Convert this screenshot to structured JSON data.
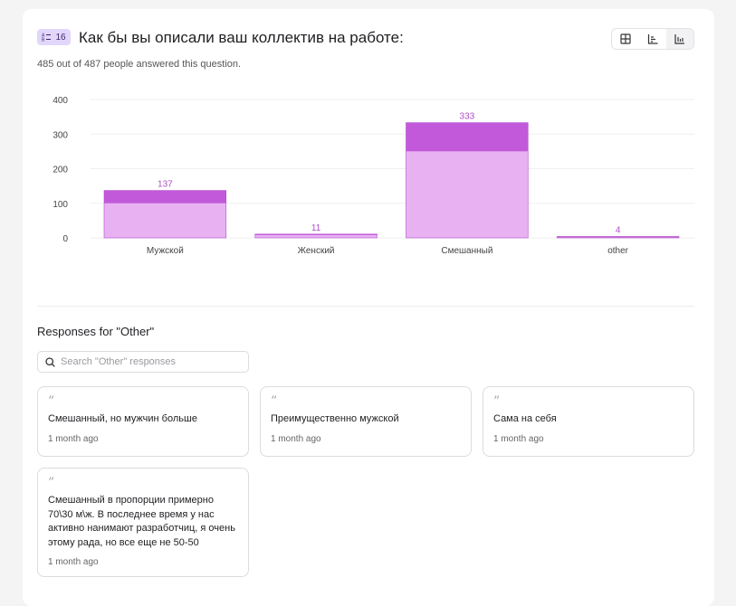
{
  "question": {
    "number": "16",
    "title": "Как бы вы описали ваш коллектив на работе:",
    "subtitle": "485 out of 487 people answered this question."
  },
  "view_toggle": [
    {
      "icon": "table-icon"
    },
    {
      "icon": "horizontal-bar-icon"
    },
    {
      "icon": "vertical-bar-icon",
      "active": true
    }
  ],
  "chart_data": {
    "type": "bar",
    "stacked": true,
    "categories": [
      "Мужской",
      "Женский",
      "Смешанный",
      "other"
    ],
    "totals": [
      137,
      11,
      333,
      4
    ],
    "series": [
      {
        "name": "lower",
        "color": "#e8b2f2",
        "values": [
          100,
          8,
          250,
          3
        ]
      },
      {
        "name": "upper",
        "color": "#c259da",
        "values": [
          37,
          3,
          83,
          1
        ]
      }
    ],
    "yticks": [
      "0",
      "100",
      "200",
      "300",
      "400"
    ],
    "ylim": [
      0,
      400
    ],
    "grid": true,
    "label_color": "#b04cc8"
  },
  "other": {
    "title": "Responses for \"Other\"",
    "search_placeholder": "Search \"Other\" responses",
    "responses": [
      {
        "text": "Смешанный, но мужчин больше",
        "time": "1 month ago"
      },
      {
        "text": "Преимущественно мужской",
        "time": "1 month ago"
      },
      {
        "text": "Сама на себя",
        "time": "1 month ago"
      },
      {
        "text": "Смешанный в пропорции примерно 70\\30 м\\ж. В последнее время у нас активно нанимают разработчиц, я очень этому рада, но все еще не 50-50",
        "time": "1 month ago"
      }
    ]
  }
}
